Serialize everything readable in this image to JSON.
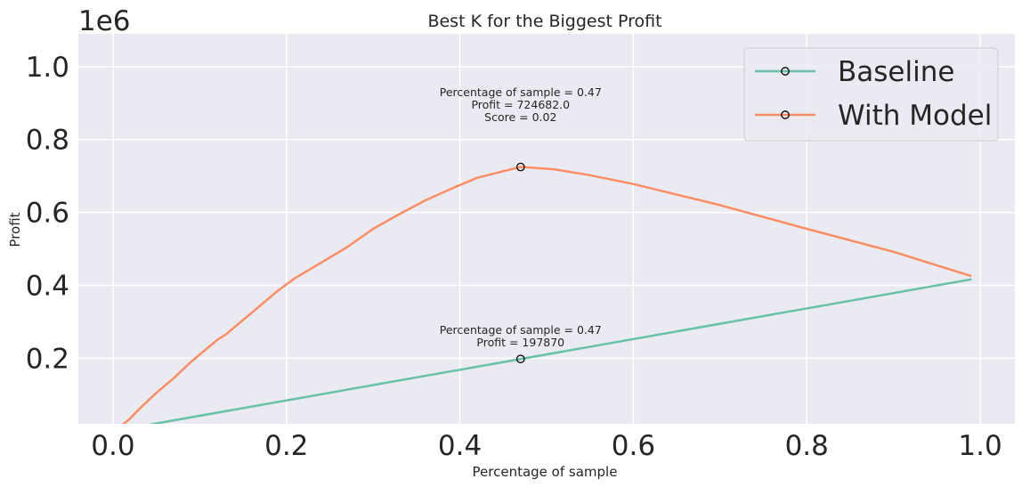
{
  "chart_data": {
    "type": "line",
    "title": "Best K for the Biggest Profit",
    "xlabel": "Percentage of sample",
    "ylabel": "Profit",
    "y_offset_text": "1e6",
    "xlim": [
      -0.04,
      1.04
    ],
    "ylim": [
      20000,
      1090000
    ],
    "xticks": [
      0.0,
      0.2,
      0.4,
      0.6,
      0.8,
      1.0
    ],
    "xtick_labels": [
      "0.0",
      "0.2",
      "0.4",
      "0.6",
      "0.8",
      "1.0"
    ],
    "yticks": [
      200000,
      400000,
      600000,
      800000,
      1000000
    ],
    "ytick_labels": [
      "0.2",
      "0.4",
      "0.6",
      "0.8",
      "1.0"
    ],
    "grid": true,
    "legend_position": "top-right",
    "series": [
      {
        "name": "Baseline",
        "color": "#66c2a5",
        "x": [
          0.0,
          0.99
        ],
        "y": [
          0,
          416600
        ]
      },
      {
        "name": "With Model",
        "color": "#fc8d62",
        "x": [
          0.01,
          0.02,
          0.03,
          0.05,
          0.07,
          0.09,
          0.12,
          0.13,
          0.15,
          0.17,
          0.19,
          0.21,
          0.24,
          0.27,
          0.3,
          0.33,
          0.36,
          0.39,
          0.42,
          0.45,
          0.47,
          0.51,
          0.55,
          0.6,
          0.7,
          0.8,
          0.9,
          0.99
        ],
        "y": [
          15000,
          35000,
          60000,
          105000,
          145000,
          190000,
          250000,
          265000,
          305000,
          345000,
          385000,
          420000,
          462000,
          505000,
          555000,
          595000,
          633000,
          665000,
          695000,
          713000,
          724682,
          718000,
          702000,
          678000,
          620000,
          555000,
          492000,
          425000
        ]
      }
    ],
    "highlight_points": [
      {
        "x": 0.47,
        "y": 724682,
        "series": "With Model"
      },
      {
        "x": 0.47,
        "y": 197870,
        "series": "Baseline"
      }
    ],
    "annotations": [
      {
        "lines": [
          "Percentage of sample = 0.47",
          "Profit = 724682.0",
          "Score = 0.02"
        ],
        "anchor_x": 0.47,
        "anchor_y": 850000
      },
      {
        "lines": [
          "Percentage of sample = 0.47",
          "Profit = 197870"
        ],
        "anchor_x": 0.47,
        "anchor_y": 232000
      }
    ]
  }
}
